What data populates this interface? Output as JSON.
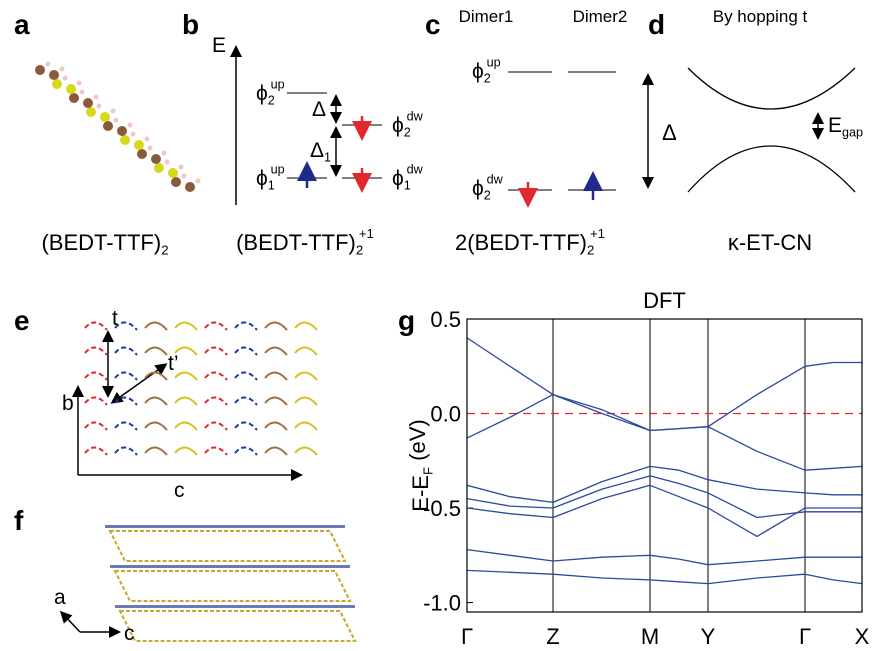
{
  "panel_a": {
    "label": "a",
    "caption": {
      "main": "(BEDT-TTF)",
      "sub": "2"
    }
  },
  "panel_b": {
    "label": "b",
    "axis": "E",
    "levels": [
      {
        "main": "ϕ",
        "sub": "2",
        "sup": "up"
      },
      {
        "main": "ϕ",
        "sub": "2",
        "sup": "dw"
      },
      {
        "main": "ϕ",
        "sub": "1",
        "sup": "up"
      },
      {
        "main": "ϕ",
        "sub": "1",
        "sup": "dw"
      }
    ],
    "gaps": [
      {
        "main": "Δ"
      },
      {
        "main": "Δ",
        "sub": "1"
      }
    ],
    "caption": {
      "main": "(BEDT-TTF)",
      "sub": "2",
      "sup": "+1"
    }
  },
  "panel_c": {
    "label": "c",
    "headers": [
      "Dimer1",
      "Dimer2"
    ],
    "levels": [
      {
        "main": "ϕ",
        "sub": "2",
        "sup": "up"
      },
      {
        "main": "ϕ",
        "sub": "2",
        "sup": "dw"
      }
    ],
    "gap": {
      "main": "Δ"
    },
    "caption": {
      "main": "2(BEDT-TTF)",
      "sub": "2",
      "sup": "+1"
    }
  },
  "panel_d": {
    "label": "d",
    "header": "By hopping t",
    "gap": {
      "main": "E",
      "sub": "gap"
    },
    "caption": "κ-ET-CN"
  },
  "panel_e": {
    "label": "e",
    "hoppings": [
      "t",
      "t’"
    ],
    "axes": [
      "b",
      "c"
    ]
  },
  "panel_f": {
    "label": "f",
    "axes": [
      "a",
      "c"
    ]
  },
  "panel_g": {
    "label": "g"
  },
  "chart_data": {
    "type": "line",
    "title": "DFT",
    "y_label": {
      "main": "E-E",
      "sub": "F",
      "tail": " (eV)"
    },
    "x": [
      0,
      0.43,
      0.86,
      1.35,
      1.83,
      2.12,
      2.41,
      2.9,
      3.38,
      3.66,
      3.95
    ],
    "xlim": [
      0,
      3.95
    ],
    "xticks": [
      {
        "value": 0,
        "label": "Γ"
      },
      {
        "value": 0.86,
        "label": "Z"
      },
      {
        "value": 1.83,
        "label": "M"
      },
      {
        "value": 2.41,
        "label": "Y"
      },
      {
        "value": 3.38,
        "label": "Γ"
      },
      {
        "value": 3.95,
        "label": "X"
      }
    ],
    "ylim": [
      -1.05,
      0.5
    ],
    "yticks": [
      0.5,
      {
        "value": 0,
        "label": "0.0"
      },
      -0.5,
      {
        "value": -1,
        "label": "-1.0"
      }
    ],
    "fermi_level": 0,
    "fermi_color": "#e0282d",
    "grid": true,
    "color": "#2b4a9c",
    "series": [
      {
        "values": [
          0.4,
          0.25,
          0.1,
          0.02,
          -0.09,
          -0.08,
          -0.07,
          0.1,
          0.25,
          0.27,
          0.27
        ]
      },
      {
        "values": [
          -0.13,
          -0.02,
          0.1,
          0.0,
          -0.09,
          -0.08,
          -0.07,
          -0.2,
          -0.3,
          -0.29,
          -0.28
        ]
      },
      {
        "values": [
          -0.38,
          -0.44,
          -0.47,
          -0.36,
          -0.28,
          -0.3,
          -0.35,
          -0.4,
          -0.42,
          -0.43,
          -0.43
        ]
      },
      {
        "values": [
          -0.45,
          -0.49,
          -0.5,
          -0.4,
          -0.33,
          -0.37,
          -0.42,
          -0.55,
          -0.52,
          -0.52,
          -0.52
        ]
      },
      {
        "values": [
          -0.5,
          -0.53,
          -0.55,
          -0.45,
          -0.38,
          -0.44,
          -0.5,
          -0.65,
          -0.5,
          -0.5,
          -0.5
        ]
      },
      {
        "values": [
          -0.72,
          -0.75,
          -0.78,
          -0.76,
          -0.75,
          -0.77,
          -0.8,
          -0.78,
          -0.76,
          -0.76,
          -0.76
        ]
      },
      {
        "values": [
          -0.83,
          -0.84,
          -0.85,
          -0.87,
          -0.88,
          -0.89,
          -0.9,
          -0.87,
          -0.85,
          -0.88,
          -0.9
        ]
      }
    ]
  }
}
